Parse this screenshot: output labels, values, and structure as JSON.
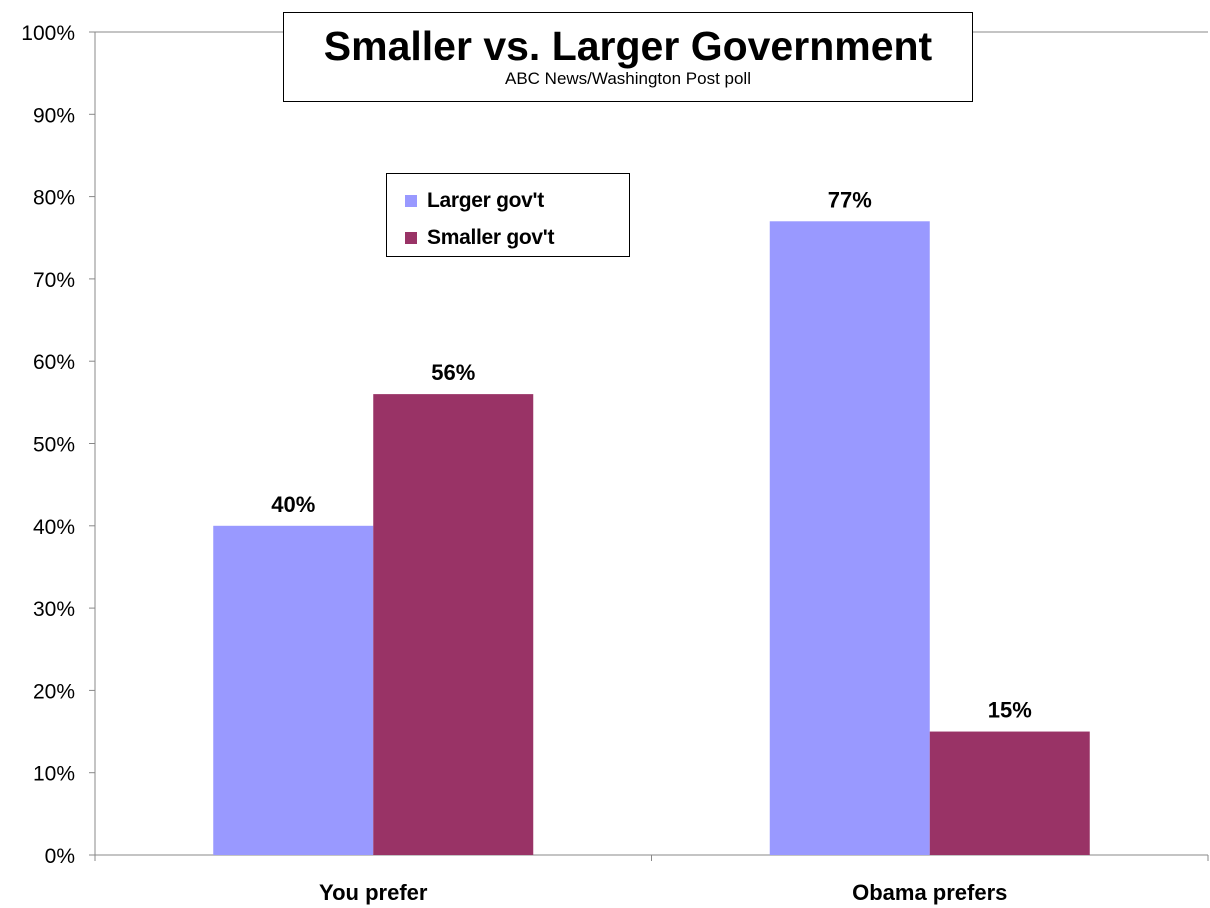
{
  "chart_data": {
    "type": "bar",
    "title": "Smaller vs. Larger Government",
    "subtitle": "ABC News/Washington Post poll",
    "categories": [
      "You prefer",
      "Obama prefers"
    ],
    "series": [
      {
        "name": "Larger gov't",
        "values": [
          40,
          77
        ],
        "labels": [
          "40%",
          "77%"
        ],
        "color": "#9999ff"
      },
      {
        "name": "Smaller gov't",
        "values": [
          56,
          15
        ],
        "labels": [
          "56%",
          "15%"
        ],
        "color": "#993366"
      }
    ],
    "ylim": [
      0,
      100
    ],
    "yticks": [
      0,
      10,
      20,
      30,
      40,
      50,
      60,
      70,
      80,
      90,
      100
    ],
    "ytick_labels": [
      "0%",
      "10%",
      "20%",
      "30%",
      "40%",
      "50%",
      "60%",
      "70%",
      "80%",
      "90%",
      "100%"
    ],
    "xlabel": "",
    "ylabel": "",
    "grid": false,
    "legend_position": "upper-left inside plot"
  }
}
